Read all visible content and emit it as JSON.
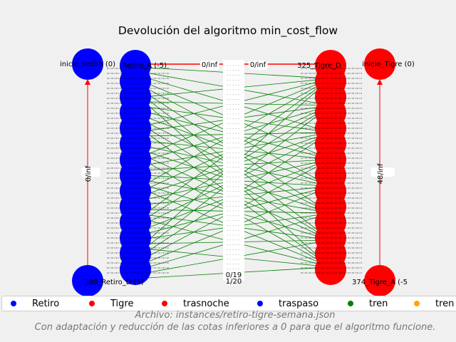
{
  "title": "Devolución del algoritmo min_cost_flow",
  "node_labels": {
    "inicio_retiro": "inicio_Retiro (0)",
    "retiro_top": "Retiro_A (-5)",
    "tigre_top": "325_Tigre_D",
    "inicio_tigre": "inicio_Tigre (0)",
    "retiro_bottom": "380_Retiro_D (5)",
    "tigre_bottom": "374_Tigre_A (-5"
  },
  "edge_labels": {
    "top_left": "0/inf",
    "top_right": "0/inf",
    "left_vertical": "0/inf",
    "right_vertical": "48/inf",
    "bottom_a": "0/19",
    "bottom_b": "1/20"
  },
  "legend": [
    {
      "label": "Retiro",
      "color": "#0000ff"
    },
    {
      "label": "Tigre",
      "color": "#ff0000"
    },
    {
      "label": "trasnoche",
      "color": "#ff0000"
    },
    {
      "label": "traspaso",
      "color": "#0000ff"
    },
    {
      "label": "tren",
      "color": "#008000"
    },
    {
      "label": "tren",
      "color": "#ffa500"
    }
  ],
  "note_file": "Archivo: instances/retiro-tigre-semana.json",
  "note_adaptation": "Con adaptación y reducción de las cotas inferiores a 0 para que el algoritmo funcione.",
  "colors": {
    "retiro": "#0000ff",
    "tigre": "#ff0000",
    "tren": "#008000",
    "background": "#f0f0f0"
  }
}
